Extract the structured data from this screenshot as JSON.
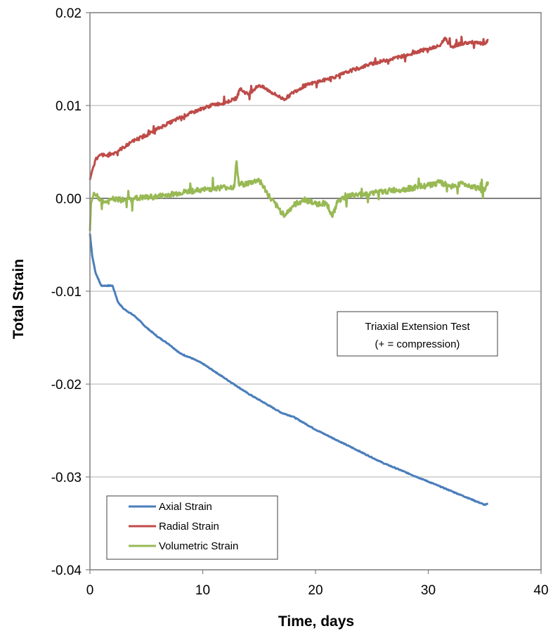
{
  "chart_data": {
    "type": "line",
    "xlabel": "Time, days",
    "ylabel": "Total Strain",
    "xlim": [
      0,
      40
    ],
    "ylim": [
      -0.04,
      0.02
    ],
    "x_ticks": [
      0,
      10,
      20,
      30,
      40
    ],
    "x_tick_labels": [
      "0",
      "10",
      "20",
      "30",
      "40"
    ],
    "y_ticks": [
      0.02,
      0.01,
      0.0,
      -0.01,
      -0.02,
      -0.03,
      -0.04
    ],
    "y_tick_labels": [
      "0.02",
      "0.01",
      "0.00",
      "-0.01",
      "-0.02",
      "-0.03",
      "-0.04"
    ],
    "grid": "horizontal",
    "annotation": [
      "Triaxial Extension Test",
      "(+ = compression)"
    ],
    "legend_position": "bottom-left",
    "series": [
      {
        "name": "Axial Strain",
        "color": "#4a7ebb",
        "x": [
          0,
          0.2,
          0.5,
          1.0,
          1.5,
          2.0,
          2.5,
          3.0,
          4.0,
          5.0,
          6.0,
          7.0,
          8.0,
          9.0,
          10.0,
          11.0,
          12.0,
          13.0,
          14.0,
          15.0,
          16.0,
          17.0,
          18.0,
          19.0,
          20.0,
          21.0,
          22.0,
          23.0,
          24.0,
          25.0,
          26.0,
          27.0,
          28.0,
          29.0,
          30.0,
          31.0,
          32.0,
          33.0,
          34.0,
          35.0,
          35.3
        ],
        "y": [
          -0.0038,
          -0.0062,
          -0.008,
          -0.0094,
          -0.0094,
          -0.0094,
          -0.0112,
          -0.0119,
          -0.0127,
          -0.0139,
          -0.0149,
          -0.0157,
          -0.0167,
          -0.0172,
          -0.0178,
          -0.0186,
          -0.0194,
          -0.0202,
          -0.021,
          -0.0217,
          -0.0224,
          -0.0231,
          -0.0235,
          -0.0242,
          -0.0249,
          -0.0255,
          -0.0261,
          -0.0267,
          -0.0273,
          -0.0279,
          -0.0285,
          -0.029,
          -0.0295,
          -0.03,
          -0.0305,
          -0.031,
          -0.0315,
          -0.032,
          -0.0325,
          -0.033,
          -0.0329
        ]
      },
      {
        "name": "Radial Strain",
        "color": "#be4b48",
        "x": [
          0,
          0.2,
          0.5,
          1.0,
          1.5,
          2.0,
          3.0,
          4.0,
          5.0,
          6.0,
          7.0,
          8.0,
          9.0,
          10.0,
          11.0,
          12.0,
          13.0,
          13.3,
          14.0,
          15.0,
          16.0,
          17.0,
          17.3,
          18.0,
          19.0,
          20.0,
          21.0,
          22.0,
          23.0,
          24.0,
          25.0,
          26.0,
          27.0,
          28.0,
          29.0,
          30.0,
          31.0,
          31.5,
          32.0,
          33.0,
          34.0,
          35.0,
          35.3
        ],
        "y": [
          0.002,
          0.003,
          0.0042,
          0.0047,
          0.0046,
          0.0048,
          0.0055,
          0.0063,
          0.0068,
          0.0075,
          0.0081,
          0.0087,
          0.0092,
          0.0097,
          0.0101,
          0.0103,
          0.0108,
          0.0118,
          0.0112,
          0.0122,
          0.0115,
          0.0108,
          0.0107,
          0.0114,
          0.0121,
          0.0125,
          0.0128,
          0.0132,
          0.0137,
          0.0141,
          0.0145,
          0.0148,
          0.0151,
          0.0154,
          0.0158,
          0.0161,
          0.0164,
          0.0173,
          0.0163,
          0.0167,
          0.0168,
          0.0166,
          0.017
        ]
      },
      {
        "name": "Volumetric Strain",
        "color": "#98b954",
        "x": [
          0,
          0.1,
          0.3,
          0.6,
          1.0,
          1.5,
          2.0,
          3.0,
          4.0,
          5.0,
          6.0,
          7.0,
          8.0,
          9.0,
          10.0,
          11.0,
          12.0,
          12.8,
          13.0,
          13.2,
          14.0,
          15.0,
          16.0,
          17.0,
          17.3,
          18.0,
          19.0,
          20.0,
          21.0,
          21.5,
          22.0,
          23.0,
          24.0,
          25.0,
          26.0,
          27.0,
          28.0,
          29.0,
          30.0,
          31.0,
          32.0,
          33.0,
          34.0,
          35.0,
          35.3
        ],
        "y": [
          -0.0035,
          -0.0005,
          0.0003,
          0.0004,
          -0.0003,
          -0.0004,
          -0.0001,
          -0.0002,
          0.0,
          0.0001,
          0.0002,
          0.0004,
          0.0006,
          0.0008,
          0.0009,
          0.0011,
          0.0012,
          0.0012,
          0.004,
          0.0015,
          0.0016,
          0.002,
          0.0,
          -0.0015,
          -0.0018,
          -0.0008,
          -0.0001,
          -0.0006,
          -0.0005,
          -0.002,
          -0.0002,
          0.0003,
          0.0004,
          0.0006,
          0.0007,
          0.0009,
          0.001,
          0.0012,
          0.0014,
          0.0017,
          0.0013,
          0.0016,
          0.0013,
          0.0008,
          0.0018
        ]
      }
    ]
  }
}
